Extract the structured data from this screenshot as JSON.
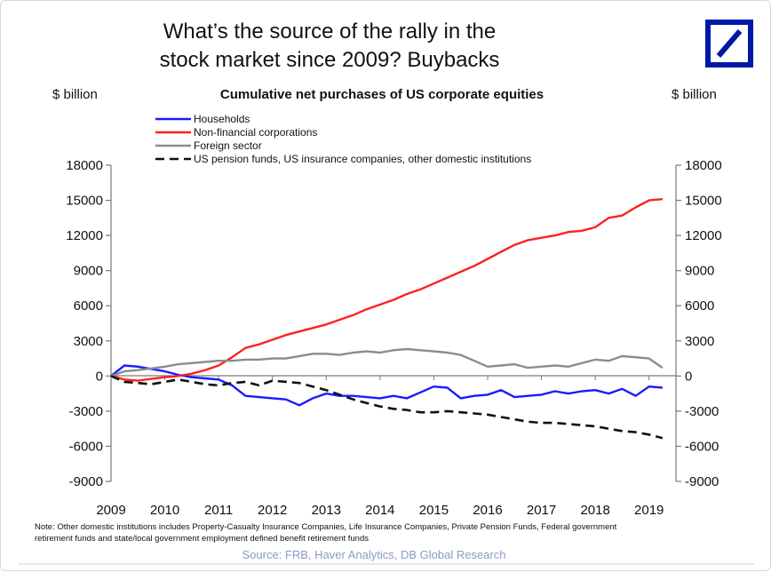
{
  "title_lines": [
    "What’s the source of the rally in the",
    "stock market since 2009? Buybacks"
  ],
  "logo": {
    "name": "Deutsche Bank logo",
    "color": "#0018a8"
  },
  "chart_data": {
    "type": "line",
    "subtitle": "Cumulative net purchases of US corporate equities",
    "ylabel_left": "$ billion",
    "ylabel_right": "$ billion",
    "ylim": [
      -9000,
      18000
    ],
    "yticks": [
      18000,
      15000,
      12000,
      9000,
      6000,
      3000,
      0,
      -3000,
      -6000,
      -9000
    ],
    "xlim": [
      2009,
      2019.5
    ],
    "xticks": [
      2009,
      2010,
      2011,
      2012,
      2013,
      2014,
      2015,
      2016,
      2017,
      2018,
      2019
    ],
    "grid": false,
    "legend_placement": "top-left",
    "series": [
      {
        "name": "Households",
        "color": "#1a1aff",
        "dash": "solid",
        "x": [
          2009,
          2009.25,
          2009.5,
          2009.75,
          2010,
          2010.25,
          2010.5,
          2010.75,
          2011,
          2011.25,
          2011.5,
          2011.75,
          2012,
          2012.25,
          2012.5,
          2012.75,
          2013,
          2013.25,
          2013.5,
          2013.75,
          2014,
          2014.25,
          2014.5,
          2014.75,
          2015,
          2015.25,
          2015.5,
          2015.75,
          2016,
          2016.25,
          2016.5,
          2016.75,
          2017,
          2017.25,
          2017.5,
          2017.75,
          2018,
          2018.25,
          2018.5,
          2018.75,
          2019,
          2019.25
        ],
        "y": [
          0,
          900,
          800,
          600,
          400,
          100,
          -100,
          -200,
          -300,
          -800,
          -1700,
          -1800,
          -1900,
          -2000,
          -2500,
          -1900,
          -1500,
          -1700,
          -1700,
          -1800,
          -1900,
          -1700,
          -1900,
          -1400,
          -900,
          -1000,
          -1900,
          -1700,
          -1600,
          -1200,
          -1800,
          -1700,
          -1600,
          -1300,
          -1500,
          -1300,
          -1200,
          -1500,
          -1100,
          -1700,
          -900,
          -1000
        ]
      },
      {
        "name": "Non-financial corporations",
        "color": "#ff2020",
        "dash": "solid",
        "x": [
          2009,
          2009.25,
          2009.5,
          2009.75,
          2010,
          2010.25,
          2010.5,
          2010.75,
          2011,
          2011.25,
          2011.5,
          2011.75,
          2012,
          2012.25,
          2012.5,
          2012.75,
          2013,
          2013.25,
          2013.5,
          2013.75,
          2014,
          2014.25,
          2014.5,
          2014.75,
          2015,
          2015.25,
          2015.5,
          2015.75,
          2016,
          2016.25,
          2016.5,
          2016.75,
          2017,
          2017.25,
          2017.5,
          2017.75,
          2018,
          2018.25,
          2018.5,
          2018.75,
          2019,
          2019.25
        ],
        "y": [
          0,
          -300,
          -400,
          -250,
          -100,
          0,
          200,
          500,
          900,
          1600,
          2400,
          2700,
          3100,
          3500,
          3800,
          4100,
          4400,
          4800,
          5200,
          5700,
          6100,
          6500,
          7000,
          7400,
          7900,
          8400,
          8900,
          9400,
          10000,
          10600,
          11200,
          11600,
          11800,
          12000,
          12300,
          12400,
          12700,
          13500,
          13700,
          14400,
          15000,
          15100
        ]
      },
      {
        "name": "Foreign sector",
        "color": "#8c8c8c",
        "dash": "solid",
        "x": [
          2009,
          2009.25,
          2009.5,
          2009.75,
          2010,
          2010.25,
          2010.5,
          2010.75,
          2011,
          2011.25,
          2011.5,
          2011.75,
          2012,
          2012.25,
          2012.5,
          2012.75,
          2013,
          2013.25,
          2013.5,
          2013.75,
          2014,
          2014.25,
          2014.5,
          2014.75,
          2015,
          2015.25,
          2015.5,
          2015.75,
          2016,
          2016.25,
          2016.5,
          2016.75,
          2017,
          2017.25,
          2017.5,
          2017.75,
          2018,
          2018.25,
          2018.5,
          2018.75,
          2019,
          2019.25
        ],
        "y": [
          0,
          400,
          500,
          650,
          800,
          1000,
          1100,
          1200,
          1300,
          1300,
          1400,
          1400,
          1500,
          1500,
          1700,
          1900,
          1900,
          1800,
          2000,
          2100,
          2000,
          2200,
          2300,
          2200,
          2100,
          2000,
          1800,
          1300,
          800,
          900,
          1000,
          700,
          800,
          900,
          800,
          1100,
          1400,
          1300,
          1700,
          1600,
          1500,
          700
        ]
      },
      {
        "name": "US pension funds, US insurance companies, other domestic institutions",
        "color": "#111111",
        "dash": "dashed",
        "x": [
          2009,
          2009.25,
          2009.5,
          2009.75,
          2010,
          2010.25,
          2010.5,
          2010.75,
          2011,
          2011.25,
          2011.5,
          2011.75,
          2012,
          2012.25,
          2012.5,
          2012.75,
          2013,
          2013.25,
          2013.5,
          2013.75,
          2014,
          2014.25,
          2014.5,
          2014.75,
          2015,
          2015.25,
          2015.5,
          2015.75,
          2016,
          2016.25,
          2016.5,
          2016.75,
          2017,
          2017.25,
          2017.5,
          2017.75,
          2018,
          2018.25,
          2018.5,
          2018.75,
          2019,
          2019.25
        ],
        "y": [
          0,
          -500,
          -600,
          -700,
          -500,
          -300,
          -500,
          -700,
          -800,
          -600,
          -500,
          -800,
          -400,
          -500,
          -600,
          -900,
          -1200,
          -1600,
          -2000,
          -2300,
          -2600,
          -2800,
          -2900,
          -3100,
          -3100,
          -3000,
          -3100,
          -3200,
          -3300,
          -3500,
          -3700,
          -3900,
          -4000,
          -4000,
          -4100,
          -4200,
          -4300,
          -4500,
          -4700,
          -4800,
          -5000,
          -5300
        ]
      }
    ]
  },
  "footnote_lines": [
    "Note: Other domestic institutions includes Property-Casualty Insurance Companies, Life Insurance Companies, Private Pension Funds, Federal government",
    "retirement funds and state/local government employment defined benefit retirement funds"
  ],
  "source": "Source: FRB, Haver Analytics, DB Global Research"
}
